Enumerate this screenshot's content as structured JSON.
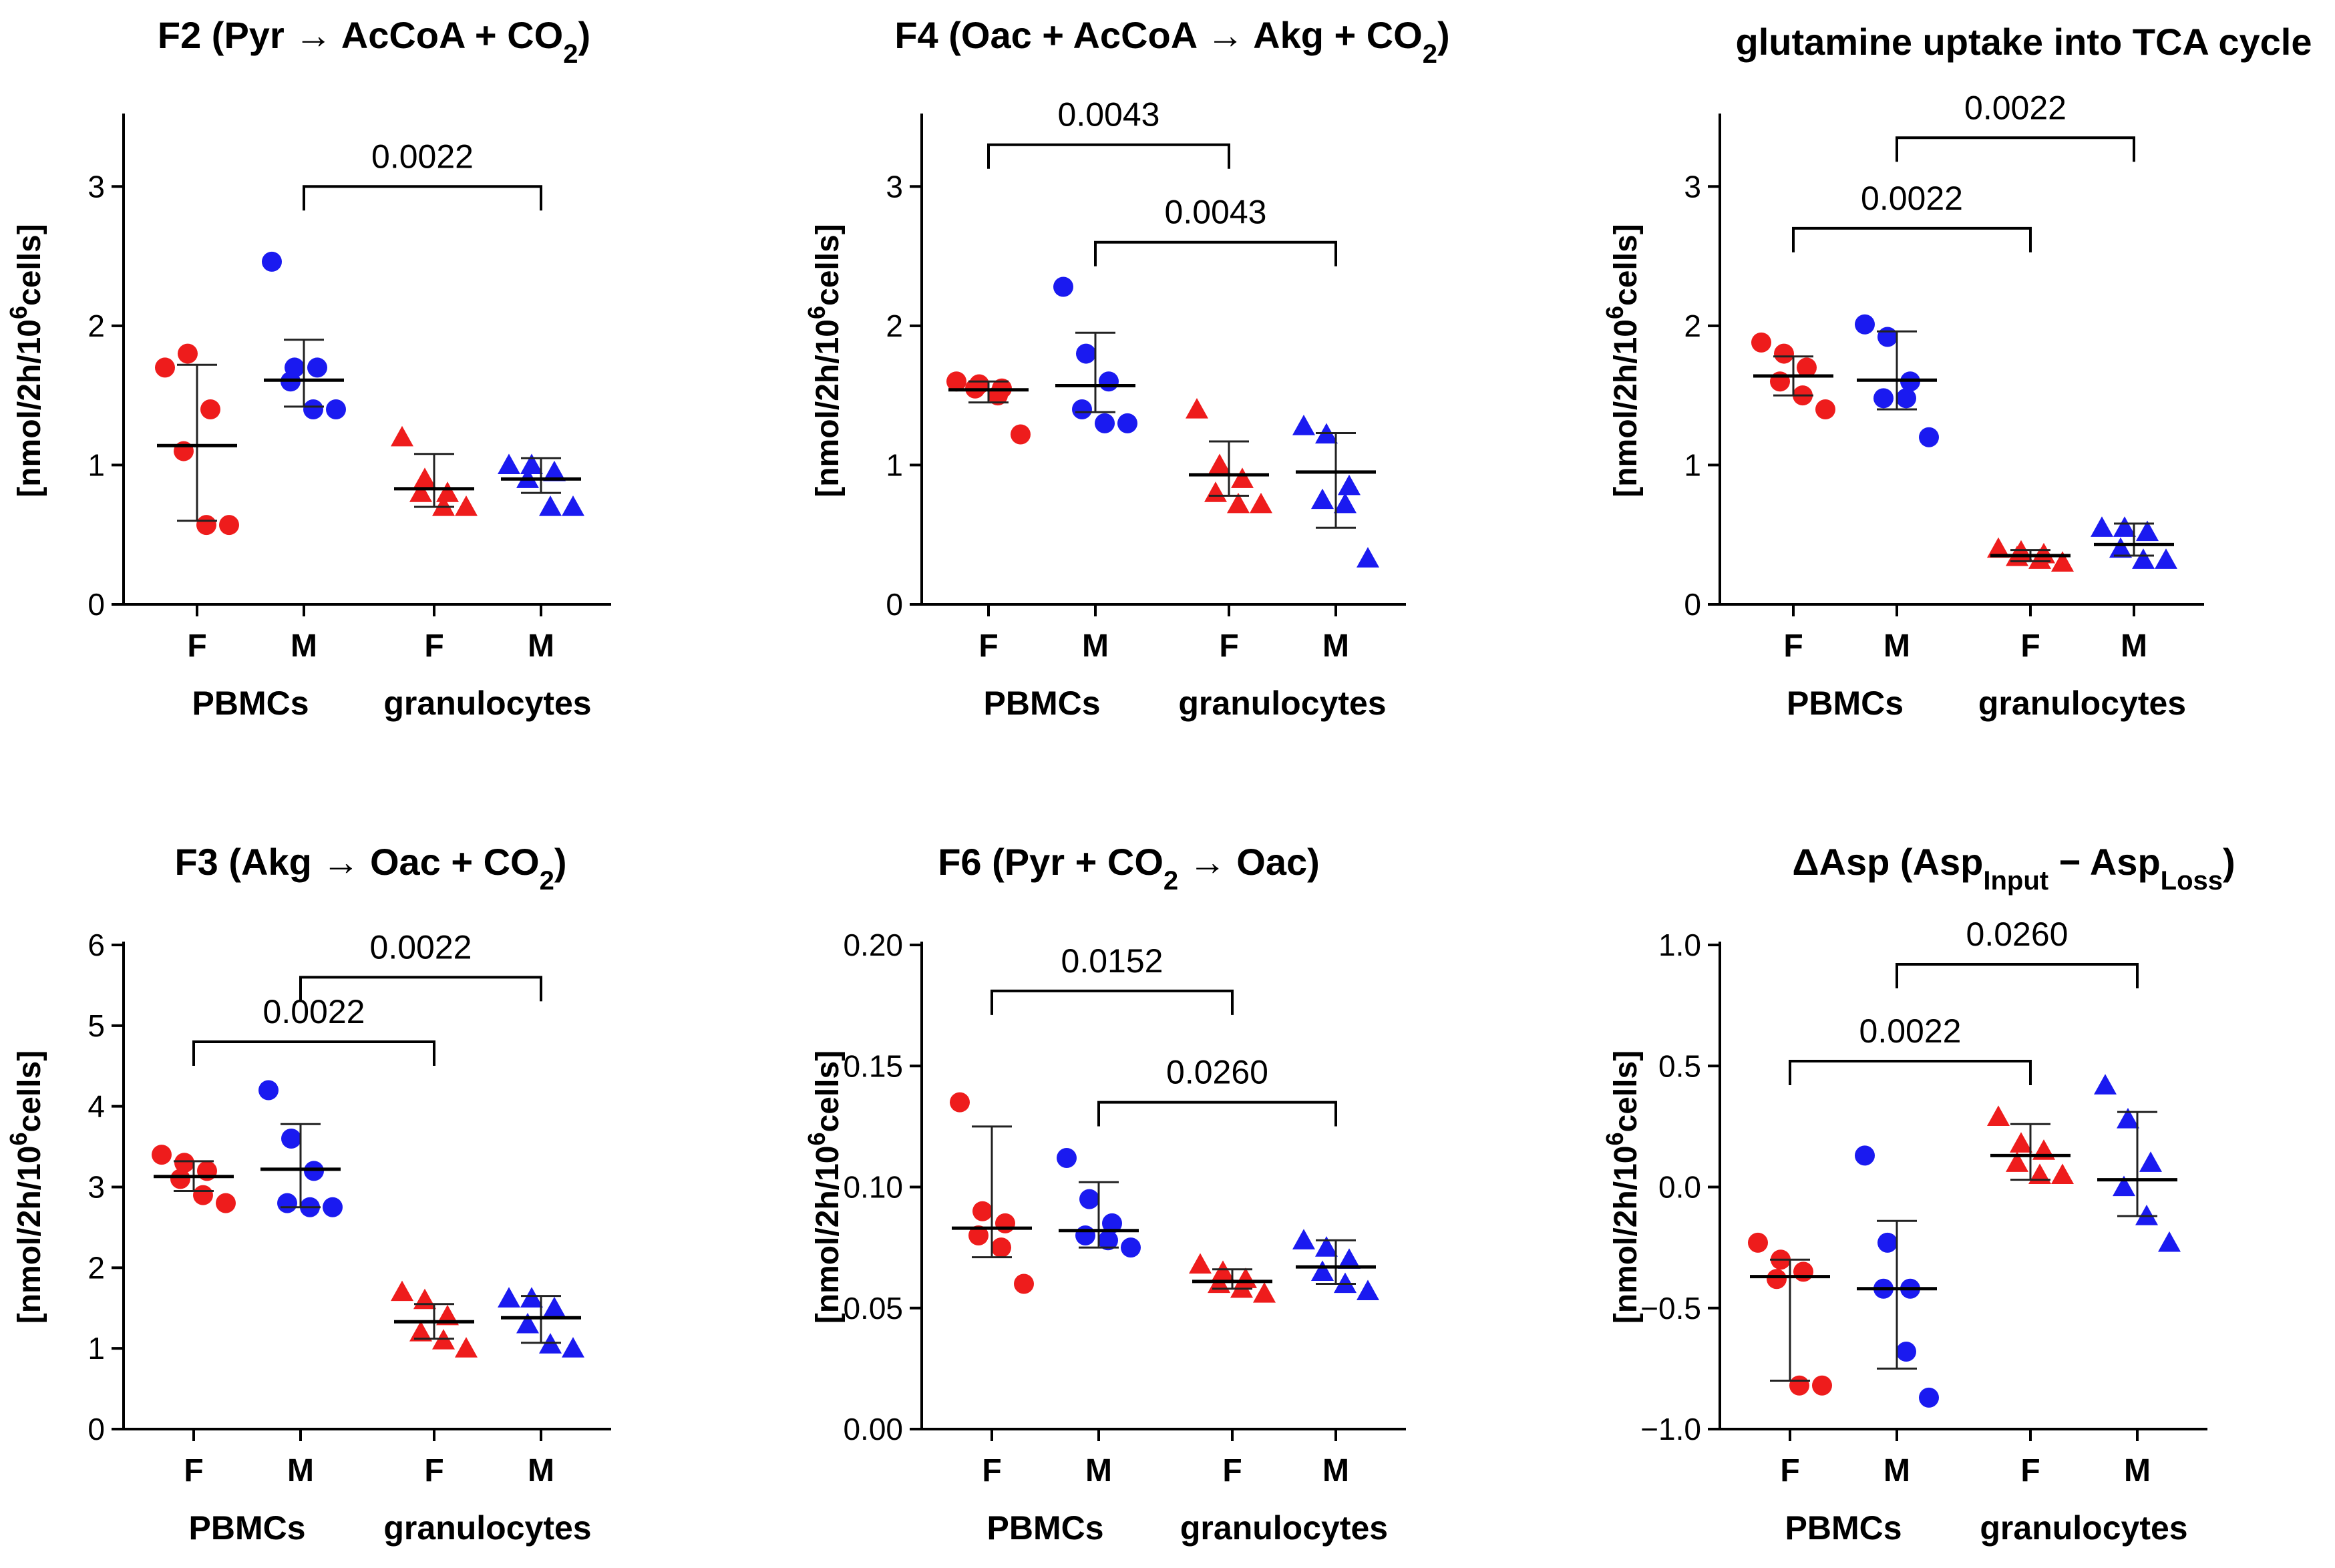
{
  "colors": {
    "female": "#ee1c1c",
    "male": "#1a1af0",
    "axis": "#000000"
  },
  "chart_data": [
    {
      "type": "scatter",
      "title": {
        "main": "F2 (Pyr → AcCoA + CO",
        "sub": "2",
        "tail": ")"
      },
      "ylabel": {
        "pre": "[nmol/2h/10",
        "sup": "6",
        "post": "cells]"
      },
      "ylim": [
        0,
        3.5
      ],
      "yticks": [
        0,
        1,
        2,
        3
      ],
      "ytick_labels": [
        "0",
        "1",
        "2",
        "3"
      ],
      "groups": [
        "PBMCs",
        "granulocytes"
      ],
      "categories": [
        {
          "label": "F",
          "group": "PBMCs",
          "color": "female",
          "marker": "circle",
          "values": [
            1.7,
            1.8,
            1.4,
            1.1,
            0.57,
            0.57
          ],
          "mean": 1.14,
          "sd_low": 0.6,
          "sd_high": 1.72
        },
        {
          "label": "M",
          "group": "PBMCs",
          "color": "male",
          "marker": "circle",
          "values": [
            2.46,
            1.7,
            1.7,
            1.6,
            1.4,
            1.4
          ],
          "mean": 1.61,
          "sd_low": 1.42,
          "sd_high": 1.9
        },
        {
          "label": "F",
          "group": "granulocytes",
          "color": "female",
          "marker": "triangle",
          "values": [
            1.2,
            0.9,
            0.8,
            0.8,
            0.7,
            0.7
          ],
          "mean": 0.83,
          "sd_low": 0.7,
          "sd_high": 1.08
        },
        {
          "label": "M",
          "group": "granulocytes",
          "color": "male",
          "marker": "triangle",
          "values": [
            1.0,
            1.0,
            0.95,
            0.9,
            0.7,
            0.7
          ],
          "mean": 0.9,
          "sd_low": 0.8,
          "sd_high": 1.05
        }
      ],
      "comparisons": [
        {
          "from": 1,
          "to": 3,
          "level": 3.0,
          "label": "0.0022"
        }
      ]
    },
    {
      "type": "scatter",
      "title": {
        "main": "F4 (Oac + AcCoA → Akg + CO",
        "sub": "2",
        "tail": ")"
      },
      "ylabel": {
        "pre": "[nmol/2h/10",
        "sup": "6",
        "post": "cells]"
      },
      "ylim": [
        0,
        3.5
      ],
      "yticks": [
        0,
        1,
        2,
        3
      ],
      "ytick_labels": [
        "0",
        "1",
        "2",
        "3"
      ],
      "groups": [
        "PBMCs",
        "granulocytes"
      ],
      "categories": [
        {
          "label": "F",
          "group": "PBMCs",
          "color": "female",
          "marker": "circle",
          "values": [
            1.6,
            1.58,
            1.55,
            1.55,
            1.5,
            1.22
          ],
          "mean": 1.54,
          "sd_low": 1.45,
          "sd_high": 1.6
        },
        {
          "label": "M",
          "group": "PBMCs",
          "color": "male",
          "marker": "circle",
          "values": [
            2.28,
            1.8,
            1.6,
            1.4,
            1.3,
            1.3
          ],
          "mean": 1.57,
          "sd_low": 1.38,
          "sd_high": 1.95
        },
        {
          "label": "F",
          "group": "granulocytes",
          "color": "female",
          "marker": "triangle",
          "values": [
            1.4,
            1.0,
            0.9,
            0.8,
            0.72,
            0.72
          ],
          "mean": 0.93,
          "sd_low": 0.78,
          "sd_high": 1.17
        },
        {
          "label": "M",
          "group": "granulocytes",
          "color": "male",
          "marker": "triangle",
          "values": [
            1.28,
            1.22,
            0.85,
            0.75,
            0.72,
            0.33
          ],
          "mean": 0.95,
          "sd_low": 0.55,
          "sd_high": 1.23
        }
      ],
      "comparisons": [
        {
          "from": 0,
          "to": 2,
          "level": 3.3,
          "label": "0.0043"
        },
        {
          "from": 1,
          "to": 3,
          "level": 2.6,
          "label": "0.0043"
        }
      ]
    },
    {
      "type": "scatter",
      "title": {
        "main": "glutamine uptake into TCA cycle",
        "sub": "",
        "tail": ""
      },
      "ylabel": {
        "pre": "[nmol/2h/10",
        "sup": "6",
        "post": "cells]"
      },
      "ylim": [
        0,
        3.5
      ],
      "yticks": [
        0,
        1,
        2,
        3
      ],
      "ytick_labels": [
        "0",
        "1",
        "2",
        "3"
      ],
      "groups": [
        "PBMCs",
        "granulocytes"
      ],
      "categories": [
        {
          "label": "F",
          "group": "PBMCs",
          "color": "female",
          "marker": "circle",
          "values": [
            1.88,
            1.8,
            1.7,
            1.6,
            1.5,
            1.4
          ],
          "mean": 1.64,
          "sd_low": 1.5,
          "sd_high": 1.78
        },
        {
          "label": "M",
          "group": "PBMCs",
          "color": "male",
          "marker": "circle",
          "values": [
            2.01,
            1.92,
            1.6,
            1.48,
            1.48,
            1.2
          ],
          "mean": 1.61,
          "sd_low": 1.4,
          "sd_high": 1.96
        },
        {
          "label": "F",
          "group": "granulocytes",
          "color": "female",
          "marker": "triangle",
          "values": [
            0.4,
            0.38,
            0.36,
            0.34,
            0.32,
            0.3
          ],
          "mean": 0.35,
          "sd_low": 0.31,
          "sd_high": 0.39
        },
        {
          "label": "M",
          "group": "granulocytes",
          "color": "male",
          "marker": "triangle",
          "values": [
            0.55,
            0.55,
            0.52,
            0.4,
            0.32,
            0.32
          ],
          "mean": 0.43,
          "sd_low": 0.35,
          "sd_high": 0.58
        }
      ],
      "comparisons": [
        {
          "from": 0,
          "to": 2,
          "level": 2.7,
          "label": "0.0022"
        },
        {
          "from": 1,
          "to": 3,
          "level": 3.35,
          "label": "0.0022"
        }
      ]
    },
    {
      "type": "scatter",
      "title": {
        "main": "F3 (Akg → Oac + CO",
        "sub": "2",
        "tail": ")"
      },
      "ylabel": {
        "pre": "[nmol/2h/10",
        "sup": "6",
        "post": "cells]"
      },
      "ylim": [
        0,
        6
      ],
      "yticks": [
        0,
        1,
        2,
        3,
        4,
        5,
        6
      ],
      "ytick_labels": [
        "0",
        "1",
        "2",
        "3",
        "4",
        "5",
        "6"
      ],
      "groups": [
        "PBMCs",
        "granulocytes"
      ],
      "categories": [
        {
          "label": "F",
          "group": "PBMCs",
          "color": "female",
          "marker": "circle",
          "values": [
            3.4,
            3.3,
            3.2,
            3.1,
            2.9,
            2.8
          ],
          "mean": 3.13,
          "sd_low": 2.95,
          "sd_high": 3.32
        },
        {
          "label": "M",
          "group": "PBMCs",
          "color": "male",
          "marker": "circle",
          "values": [
            4.2,
            3.6,
            3.2,
            2.8,
            2.75,
            2.75
          ],
          "mean": 3.22,
          "sd_low": 2.75,
          "sd_high": 3.78
        },
        {
          "label": "F",
          "group": "granulocytes",
          "color": "female",
          "marker": "triangle",
          "values": [
            1.7,
            1.6,
            1.4,
            1.2,
            1.1,
            1.0
          ],
          "mean": 1.33,
          "sd_low": 1.12,
          "sd_high": 1.55
        },
        {
          "label": "M",
          "group": "granulocytes",
          "color": "male",
          "marker": "triangle",
          "values": [
            1.62,
            1.62,
            1.5,
            1.3,
            1.05,
            1.0
          ],
          "mean": 1.38,
          "sd_low": 1.07,
          "sd_high": 1.65
        }
      ],
      "comparisons": [
        {
          "from": 0,
          "to": 2,
          "level": 4.8,
          "label": "0.0022"
        },
        {
          "from": 1,
          "to": 3,
          "level": 5.6,
          "label": "0.0022"
        }
      ]
    },
    {
      "type": "scatter",
      "title": {
        "main": "F6 (Pyr + CO",
        "sub": "2",
        "tail": " → Oac)"
      },
      "ylabel": {
        "pre": "[nmol/2h/10",
        "sup": "6",
        "post": "cells]"
      },
      "ylim": [
        0,
        0.2
      ],
      "yticks": [
        0,
        0.05,
        0.1,
        0.15,
        0.2
      ],
      "ytick_labels": [
        "0.00",
        "0.05",
        "0.10",
        "0.15",
        "0.20"
      ],
      "groups": [
        "PBMCs",
        "granulocytes"
      ],
      "categories": [
        {
          "label": "F",
          "group": "PBMCs",
          "color": "female",
          "marker": "circle",
          "values": [
            0.135,
            0.09,
            0.085,
            0.08,
            0.075,
            0.06
          ],
          "mean": 0.083,
          "sd_low": 0.071,
          "sd_high": 0.125
        },
        {
          "label": "M",
          "group": "PBMCs",
          "color": "male",
          "marker": "circle",
          "values": [
            0.112,
            0.095,
            0.085,
            0.08,
            0.078,
            0.075
          ],
          "mean": 0.082,
          "sd_low": 0.075,
          "sd_high": 0.102
        },
        {
          "label": "F",
          "group": "granulocytes",
          "color": "female",
          "marker": "triangle",
          "values": [
            0.068,
            0.065,
            0.062,
            0.06,
            0.058,
            0.056
          ],
          "mean": 0.061,
          "sd_low": 0.058,
          "sd_high": 0.066
        },
        {
          "label": "M",
          "group": "granulocytes",
          "color": "male",
          "marker": "triangle",
          "values": [
            0.078,
            0.075,
            0.07,
            0.065,
            0.06,
            0.057
          ],
          "mean": 0.067,
          "sd_low": 0.06,
          "sd_high": 0.078
        }
      ],
      "comparisons": [
        {
          "from": 0,
          "to": 2,
          "level": 0.181,
          "label": "0.0152"
        },
        {
          "from": 1,
          "to": 3,
          "level": 0.135,
          "label": "0.0260"
        }
      ]
    },
    {
      "type": "scatter",
      "title": {
        "main": "ΔAsp (Asp",
        "sub": "Input",
        "mid": " − Asp",
        "sub2": "Loss",
        "tail": ")"
      },
      "ylabel": {
        "pre": "[nmol/2h/10",
        "sup": "6",
        "post": "cells]"
      },
      "ylim": [
        -1,
        1
      ],
      "yticks": [
        -1,
        -0.5,
        0,
        0.5,
        1
      ],
      "ytick_labels": [
        "−1.0",
        "−0.5",
        "0.0",
        "0.5",
        "1.0"
      ],
      "groups": [
        "PBMCs",
        "granulocytes"
      ],
      "categories": [
        {
          "label": "F",
          "group": "PBMCs",
          "color": "female",
          "marker": "circle",
          "values": [
            -0.23,
            -0.3,
            -0.35,
            -0.38,
            -0.82,
            -0.82
          ],
          "mean": -0.37,
          "sd_low": -0.8,
          "sd_high": -0.3
        },
        {
          "label": "M",
          "group": "PBMCs",
          "color": "male",
          "marker": "circle",
          "values": [
            0.13,
            -0.23,
            -0.42,
            -0.42,
            -0.68,
            -0.87
          ],
          "mean": -0.42,
          "sd_low": -0.75,
          "sd_high": -0.14
        },
        {
          "label": "F",
          "group": "granulocytes",
          "color": "female",
          "marker": "triangle",
          "values": [
            0.29,
            0.18,
            0.15,
            0.1,
            0.05,
            0.05
          ],
          "mean": 0.13,
          "sd_low": 0.03,
          "sd_high": 0.26
        },
        {
          "label": "M",
          "group": "granulocytes",
          "color": "male",
          "marker": "triangle",
          "values": [
            0.42,
            0.28,
            0.1,
            0.0,
            -0.12,
            -0.23
          ],
          "mean": 0.03,
          "sd_low": -0.12,
          "sd_high": 0.31
        }
      ],
      "comparisons": [
        {
          "from": 0,
          "to": 2,
          "level": 0.52,
          "label": "0.0022"
        },
        {
          "from": 1,
          "to": 3,
          "level": 0.92,
          "label": "0.0260"
        }
      ]
    }
  ]
}
